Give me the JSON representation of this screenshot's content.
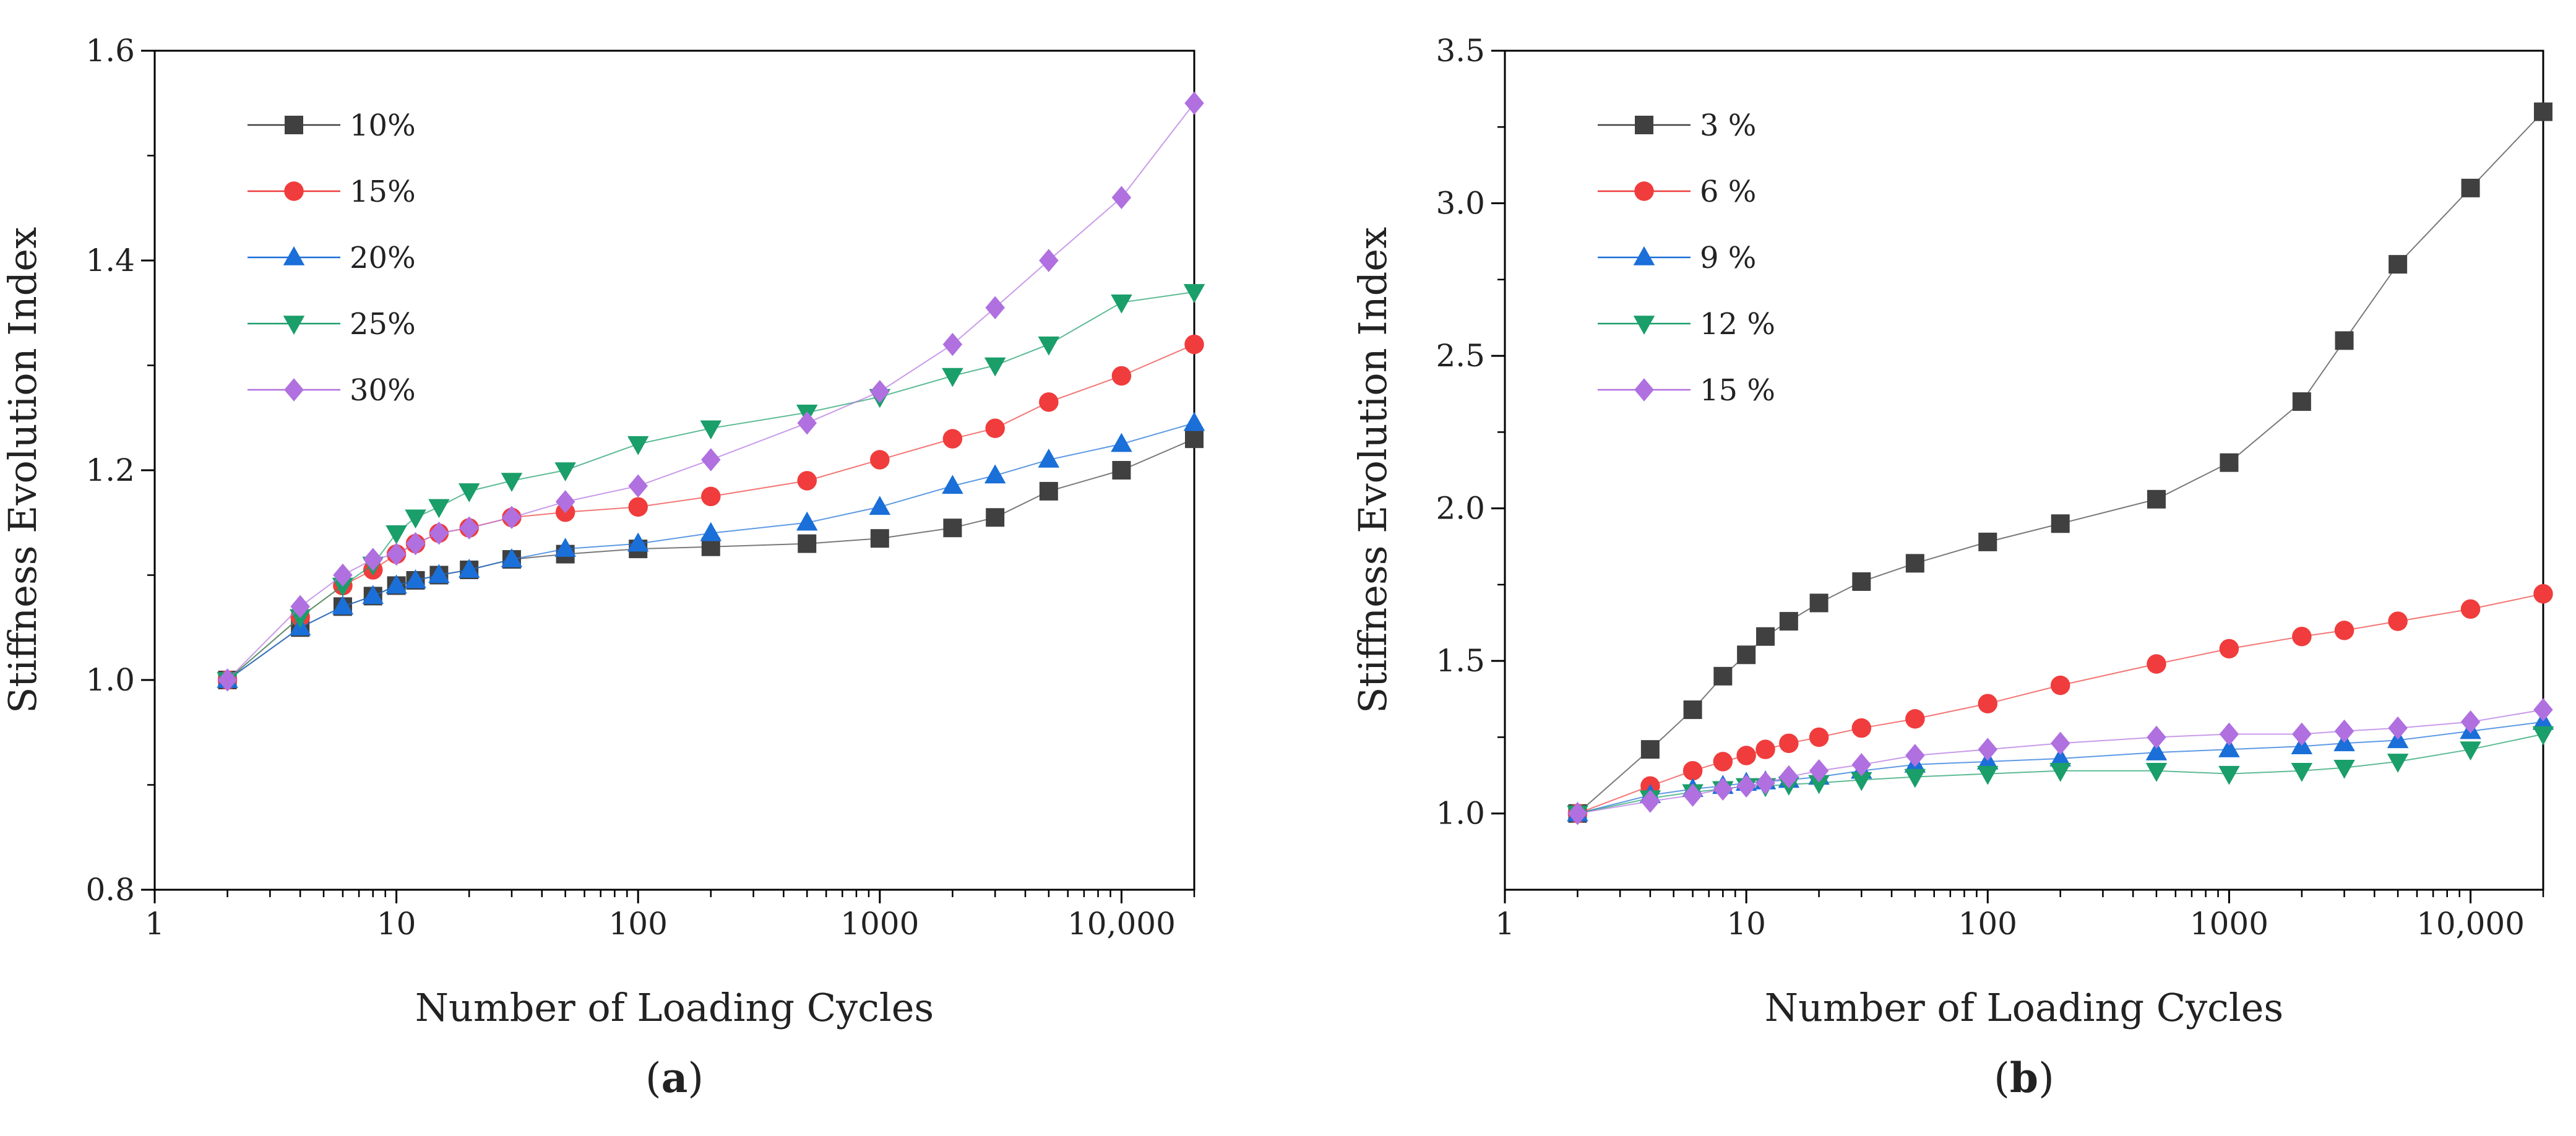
{
  "chart_data": [
    {
      "panel_label": "a",
      "type": "scatter",
      "xscale": "log",
      "xlabel": "Number of Loading Cycles",
      "ylabel": "Stiffness Evolution Index",
      "xlim": [
        1,
        20000
      ],
      "ylim": [
        0.8,
        1.6
      ],
      "xticks": [
        1,
        10,
        100,
        1000,
        10000
      ],
      "xtick_labels": [
        "1",
        "10",
        "100",
        "1000",
        "10,000"
      ],
      "yticks": [
        0.8,
        1.0,
        1.2,
        1.4,
        1.6
      ],
      "ytick_labels": [
        "0.8",
        "1.0",
        "1.2",
        "1.4",
        "1.6"
      ],
      "legend_position": "top-left",
      "series": [
        {
          "name": "10%",
          "color": "#404040",
          "marker": "square",
          "x": [
            2,
            4,
            6,
            8,
            10,
            12,
            15,
            20,
            30,
            50,
            100,
            200,
            500,
            1000,
            2000,
            3000,
            5000,
            10000,
            20000
          ],
          "y": [
            1.0,
            1.05,
            1.07,
            1.08,
            1.09,
            1.095,
            1.1,
            1.105,
            1.115,
            1.12,
            1.125,
            1.127,
            1.13,
            1.135,
            1.145,
            1.155,
            1.18,
            1.2,
            1.23
          ]
        },
        {
          "name": "15%",
          "color": "#f03c3c",
          "marker": "circle",
          "x": [
            2,
            4,
            6,
            8,
            10,
            12,
            15,
            20,
            30,
            50,
            100,
            200,
            500,
            1000,
            2000,
            3000,
            5000,
            10000,
            20000
          ],
          "y": [
            1.0,
            1.06,
            1.09,
            1.105,
            1.12,
            1.13,
            1.14,
            1.145,
            1.155,
            1.16,
            1.165,
            1.175,
            1.19,
            1.21,
            1.23,
            1.24,
            1.265,
            1.29,
            1.32
          ]
        },
        {
          "name": "20%",
          "color": "#1a6fd8",
          "marker": "triangle-up",
          "x": [
            2,
            4,
            6,
            8,
            10,
            12,
            15,
            20,
            30,
            50,
            100,
            200,
            500,
            1000,
            2000,
            3000,
            5000,
            10000,
            20000
          ],
          "y": [
            1.0,
            1.05,
            1.07,
            1.08,
            1.09,
            1.095,
            1.1,
            1.105,
            1.115,
            1.125,
            1.13,
            1.14,
            1.15,
            1.165,
            1.185,
            1.195,
            1.21,
            1.225,
            1.245
          ]
        },
        {
          "name": "25%",
          "color": "#1a9e6a",
          "marker": "triangle-down",
          "x": [
            2,
            4,
            6,
            8,
            10,
            12,
            15,
            20,
            30,
            50,
            100,
            200,
            500,
            1000,
            2000,
            3000,
            5000,
            10000,
            20000
          ],
          "y": [
            1.0,
            1.06,
            1.09,
            1.11,
            1.14,
            1.155,
            1.165,
            1.18,
            1.19,
            1.2,
            1.225,
            1.24,
            1.255,
            1.27,
            1.29,
            1.3,
            1.32,
            1.36,
            1.37
          ]
        },
        {
          "name": "30%",
          "color": "#b070e0",
          "marker": "diamond",
          "x": [
            2,
            4,
            6,
            8,
            10,
            12,
            15,
            20,
            30,
            50,
            100,
            200,
            500,
            1000,
            2000,
            3000,
            5000,
            10000,
            20000
          ],
          "y": [
            1.0,
            1.07,
            1.1,
            1.115,
            1.12,
            1.13,
            1.14,
            1.145,
            1.155,
            1.17,
            1.185,
            1.21,
            1.245,
            1.275,
            1.32,
            1.355,
            1.4,
            1.46,
            1.55
          ]
        }
      ]
    },
    {
      "panel_label": "b",
      "type": "scatter",
      "xscale": "log",
      "xlabel": "Number of Loading Cycles",
      "ylabel": "Stiffness Evolution Index",
      "xlim": [
        1,
        20000
      ],
      "ylim": [
        0.75,
        3.5
      ],
      "xticks": [
        1,
        10,
        100,
        1000,
        10000
      ],
      "xtick_labels": [
        "1",
        "10",
        "100",
        "1000",
        "10,000"
      ],
      "yticks": [
        1.0,
        1.5,
        2.0,
        2.5,
        3.0,
        3.5
      ],
      "ytick_labels": [
        "1.0",
        "1.5",
        "2.0",
        "2.5",
        "3.0",
        "3.5"
      ],
      "legend_position": "top-left",
      "series": [
        {
          "name": "3 %",
          "color": "#404040",
          "marker": "square",
          "x": [
            2,
            4,
            6,
            8,
            10,
            12,
            15,
            20,
            30,
            50,
            100,
            200,
            500,
            1000,
            2000,
            3000,
            5000,
            10000,
            20000
          ],
          "y": [
            1.0,
            1.21,
            1.34,
            1.45,
            1.52,
            1.58,
            1.63,
            1.69,
            1.76,
            1.82,
            1.89,
            1.95,
            2.03,
            2.15,
            2.35,
            2.55,
            2.8,
            3.05,
            3.3
          ]
        },
        {
          "name": "6 %",
          "color": "#f03c3c",
          "marker": "circle",
          "x": [
            2,
            4,
            6,
            8,
            10,
            12,
            15,
            20,
            30,
            50,
            100,
            200,
            500,
            1000,
            2000,
            3000,
            5000,
            10000,
            20000
          ],
          "y": [
            1.0,
            1.09,
            1.14,
            1.17,
            1.19,
            1.21,
            1.23,
            1.25,
            1.28,
            1.31,
            1.36,
            1.42,
            1.49,
            1.54,
            1.58,
            1.6,
            1.63,
            1.67,
            1.72
          ]
        },
        {
          "name": "9 %",
          "color": "#1a6fd8",
          "marker": "triangle-up",
          "x": [
            2,
            4,
            6,
            8,
            10,
            12,
            15,
            20,
            30,
            50,
            100,
            200,
            500,
            1000,
            2000,
            3000,
            5000,
            10000,
            20000
          ],
          "y": [
            1.0,
            1.06,
            1.08,
            1.09,
            1.1,
            1.105,
            1.11,
            1.12,
            1.14,
            1.16,
            1.17,
            1.18,
            1.2,
            1.21,
            1.22,
            1.23,
            1.24,
            1.27,
            1.3
          ]
        },
        {
          "name": "12 %",
          "color": "#1a9e6a",
          "marker": "triangle-down",
          "x": [
            2,
            4,
            6,
            8,
            10,
            12,
            15,
            20,
            30,
            50,
            100,
            200,
            500,
            1000,
            2000,
            3000,
            5000,
            10000,
            20000
          ],
          "y": [
            1.0,
            1.05,
            1.07,
            1.08,
            1.09,
            1.09,
            1.095,
            1.1,
            1.11,
            1.12,
            1.13,
            1.14,
            1.14,
            1.13,
            1.14,
            1.15,
            1.17,
            1.21,
            1.26
          ]
        },
        {
          "name": "15 %",
          "color": "#b070e0",
          "marker": "diamond",
          "x": [
            2,
            4,
            6,
            8,
            10,
            12,
            15,
            20,
            30,
            50,
            100,
            200,
            500,
            1000,
            2000,
            3000,
            5000,
            10000,
            20000
          ],
          "y": [
            1.0,
            1.04,
            1.06,
            1.08,
            1.09,
            1.1,
            1.12,
            1.14,
            1.16,
            1.19,
            1.21,
            1.23,
            1.25,
            1.26,
            1.26,
            1.27,
            1.28,
            1.3,
            1.34
          ]
        }
      ]
    }
  ]
}
